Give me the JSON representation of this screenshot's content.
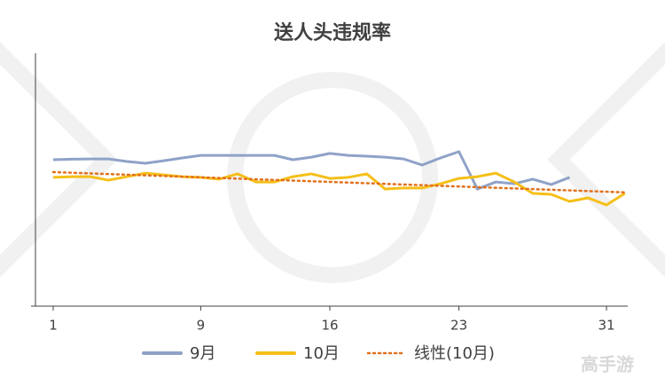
{
  "chart_data": {
    "type": "line",
    "title": "送人头违规率",
    "x": [
      1,
      2,
      3,
      4,
      5,
      6,
      7,
      8,
      9,
      10,
      11,
      12,
      13,
      14,
      15,
      16,
      17,
      18,
      19,
      20,
      21,
      22,
      23,
      24,
      25,
      26,
      27,
      28,
      29,
      30,
      31,
      32
    ],
    "xlim": [
      0,
      32
    ],
    "xticks": [
      1,
      9,
      16,
      23,
      31
    ],
    "ylim": [
      0,
      100
    ],
    "series": [
      {
        "name": "9月",
        "color": "#8fa2c8",
        "values": [
          57.9,
          58.1,
          58.2,
          58.2,
          57.2,
          56.5,
          57.5,
          58.6,
          59.6,
          59.6,
          59.6,
          59.6,
          59.6,
          57.9,
          58.9,
          60.4,
          59.6,
          59.3,
          58.9,
          58.2,
          55.8,
          58.6,
          61.1,
          46.3,
          49.1,
          48.4,
          50.2,
          48.1,
          50.9,
          null,
          null,
          null
        ]
      },
      {
        "name": "10月",
        "color": "#f5bf19",
        "values": [
          50.9,
          51.2,
          51.2,
          49.8,
          51.2,
          52.6,
          51.9,
          51.2,
          50.9,
          50.2,
          52.3,
          49.1,
          49.1,
          51.2,
          52.3,
          50.5,
          50.9,
          52.3,
          46.3,
          46.7,
          46.7,
          48.4,
          50.5,
          51.2,
          52.6,
          49.1,
          44.6,
          44.2,
          41.4,
          42.8,
          40.0,
          44.6
        ]
      }
    ],
    "trendline": {
      "name": "线性(10月)",
      "color": "#e2711d",
      "series": 1
    },
    "watermark": "高手游"
  }
}
